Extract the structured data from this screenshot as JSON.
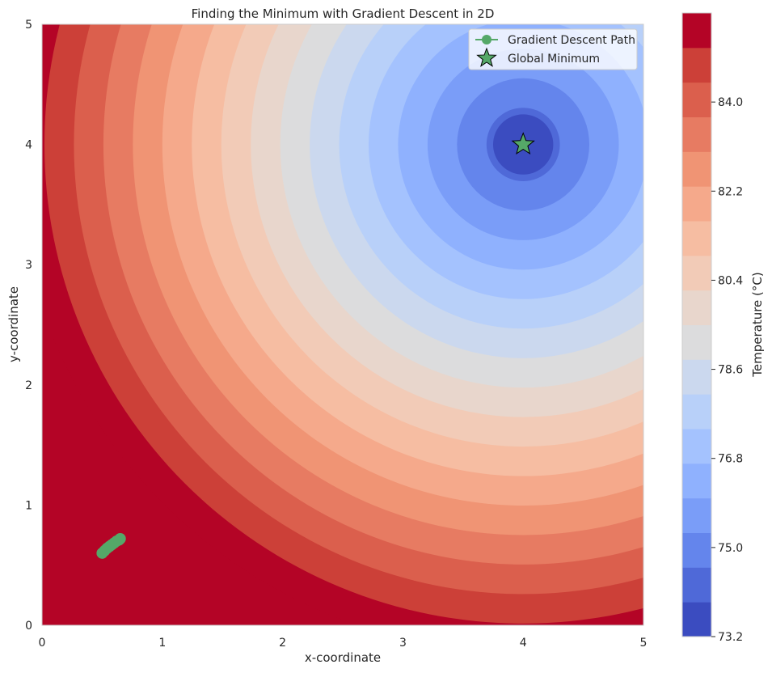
{
  "chart_data": {
    "type": "contour",
    "title": "Finding the Minimum with Gradient Descent in 2D",
    "xlabel": "x-coordinate",
    "ylabel": "y-coordinate",
    "xlim": [
      0,
      5
    ],
    "ylim": [
      0,
      5
    ],
    "xticks": [
      "0",
      "1",
      "2",
      "3",
      "4",
      "5"
    ],
    "yticks": [
      "0",
      "1",
      "2",
      "3",
      "4",
      "5"
    ],
    "grid": false,
    "field": {
      "minimum": [
        4,
        4
      ],
      "min_value": 73.2,
      "levels": [
        73.2,
        73.7,
        74.2,
        74.7,
        75.2,
        75.7,
        76.2,
        76.7,
        77.2,
        77.7,
        78.2,
        78.7,
        79.2,
        79.7,
        80.2,
        80.7,
        81.2,
        81.7,
        82.2,
        82.7,
        83.2,
        83.7,
        84.2,
        84.7,
        85.2
      ]
    },
    "colormap": "coolwarm",
    "colors": [
      "#3b4cc0",
      "#4f69d8",
      "#6485ec",
      "#7a9df8",
      "#8fb1fe",
      "#a4c2fe",
      "#b8d0f9",
      "#cbd8ee",
      "#dcdcdd",
      "#e8d6cc",
      "#f2cbb7",
      "#f6bda2",
      "#f5a98b",
      "#f09474",
      "#e77b62",
      "#db5f4d",
      "#cc4038",
      "#b40426"
    ],
    "series": [
      {
        "name": "Gradient Descent Path",
        "color": "#55a868",
        "marker": "circle",
        "x": [
          0.5,
          0.52,
          0.54,
          0.56,
          0.58,
          0.6,
          0.62,
          0.64,
          0.65
        ],
        "y": [
          0.6,
          0.62,
          0.64,
          0.655,
          0.67,
          0.685,
          0.7,
          0.71,
          0.72
        ]
      },
      {
        "name": "Global Minimum",
        "color": "#55a868",
        "marker": "star",
        "x": [
          4
        ],
        "y": [
          4
        ]
      }
    ],
    "legend": {
      "position": "top-right"
    },
    "colorbar": {
      "label": "Temperature (°C)",
      "range": [
        73.2,
        85.8
      ],
      "ticks": [
        "73.2",
        "75.0",
        "76.8",
        "78.6",
        "80.4",
        "82.2",
        "84.0"
      ]
    }
  }
}
